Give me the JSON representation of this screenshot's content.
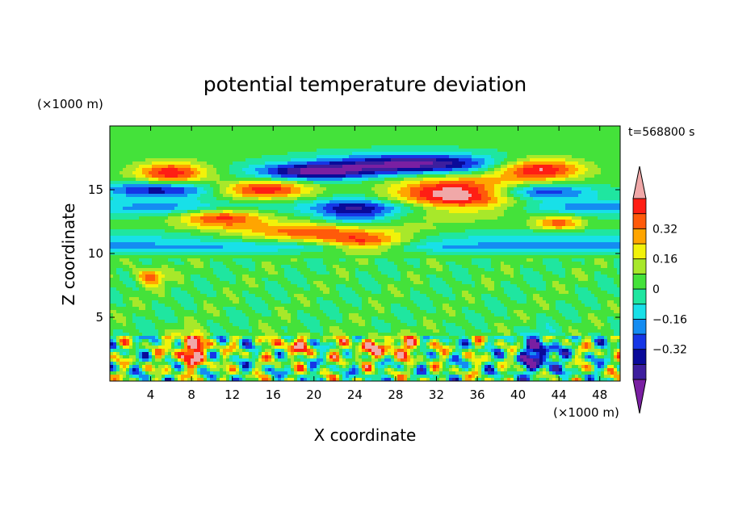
{
  "chart_data": {
    "type": "heatmap",
    "title": "potential temperature deviation",
    "xlabel": "X coordinate",
    "ylabel": "Z coordinate",
    "x_unit": "(×1000 m)",
    "y_unit": "(×1000 m)",
    "time_label": "t=568800 s",
    "xlim": [
      0,
      50
    ],
    "ylim": [
      0,
      20
    ],
    "x_ticks": [
      "4",
      "8",
      "12",
      "16",
      "20",
      "24",
      "28",
      "32",
      "36",
      "40",
      "44",
      "48"
    ],
    "y_ticks": [
      "5",
      "10",
      "15"
    ],
    "colorbar": {
      "levels": [
        -0.48,
        -0.4,
        -0.32,
        -0.24,
        -0.16,
        -0.08,
        0,
        0.08,
        0.16,
        0.24,
        0.32,
        0.4,
        0.48
      ],
      "tick_labels": [
        "-0.32",
        "-0.16",
        "0",
        "0.16",
        "0.32"
      ],
      "colors": [
        "#7a1fa2",
        "#3d1e9e",
        "#0a0a9a",
        "#1636e6",
        "#148cf2",
        "#18e0e8",
        "#1fe6a0",
        "#44e23a",
        "#a8e82a",
        "#f2f20a",
        "#ffa500",
        "#ff5a0a",
        "#ff1e14",
        "#f0a8a8"
      ]
    }
  }
}
